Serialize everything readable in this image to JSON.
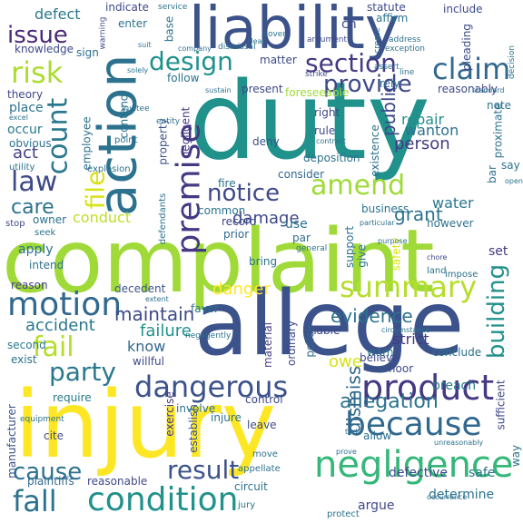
{
  "words": {
    "duty": "duty",
    "complaint": "complaint",
    "allege": "allege",
    "injury": "injury",
    "liability": "liability",
    "action": "action",
    "negligence": "negligence",
    "because": "because",
    "condition": "condition",
    "product": "product",
    "dangerous": "dangerous",
    "premise": "premise",
    "motion": "motion",
    "summary": "summary",
    "amend": "amend",
    "notice": "notice",
    "risk": "risk",
    "count": "count",
    "law": "law",
    "claim": "claim",
    "fail": "fail",
    "party": "party",
    "result": "result",
    "fall": "fall",
    "cause": "cause",
    "design": "design",
    "section": "section",
    "provide": "provide",
    "issue": "issue",
    "file": "file",
    "building": "building",
    "allegation": "allegation",
    "evidence": "evidence",
    "damage": "damage",
    "grant": "grant",
    "public": "public",
    "dismiss": "dismiss",
    "maintain": "maintain",
    "failure": "failure",
    "accident": "accident",
    "danger": "danger",
    "care": "care",
    "conduct": "conduct",
    "defect": "defect",
    "act": "act",
    "repair": "repair",
    "person": "person",
    "wanton": "wanton",
    "water": "water",
    "know": "know",
    "owe": "owe",
    "breach": "breach",
    "strict": "strict",
    "defective": "defective",
    "safe": "safe",
    "determine": "determine",
    "argue": "argue",
    "reasonable": "reasonable",
    "circuit": "circuit",
    "plaintiffs": "plaintiffs",
    "manufacturer": "manufacturer",
    "require": "require",
    "exercise": "exercise",
    "establish": "establish",
    "involve": "involve",
    "control": "control",
    "willful": "willful",
    "decedent": "decedent",
    "apply": "apply",
    "reason": "reason",
    "record": "record",
    "common": "common",
    "prior": "prior",
    "bring": "bring",
    "policy": "policy",
    "material": "material",
    "ordinary": "ordinary",
    "support": "support",
    "favor": "favor",
    "liable": "liable",
    "consider": "consider",
    "deny": "deny",
    "rule": "rule",
    "right": "right",
    "present": "present",
    "matter": "matter",
    "follow": "follow",
    "negligent": "negligent",
    "property": "property",
    "place": "place",
    "occur": "occur",
    "theory": "theory",
    "obvious": "obvious",
    "owner": "owner",
    "intend": "intend",
    "exist": "exist",
    "second": "second",
    "cite": "cite",
    "injure": "injure",
    "leave": "leave",
    "use": "use",
    "par": "par",
    "set": "set",
    "say": "say",
    "bar": "bar",
    "give": "give",
    "safety": "safety",
    "however": "however",
    "conclude": "conclude",
    "warn": "warn",
    "floor": "floor",
    "allow": "allow",
    "believe": "believe",
    "way": "way",
    "reasonably": "reasonably",
    "foreseeable": "foreseeable",
    "pleading": "pleading",
    "rely": "rely",
    "statute": "statute",
    "affirm": "affirm",
    "include": "include",
    "indicate": "indicate",
    "enter": "enter",
    "base": "base",
    "ch": "ch",
    "knowledge": "knowledge",
    "sign": "sign",
    "fire": "fire",
    "deposition": "deposition",
    "existence": "existence",
    "business": "business",
    "note": "note",
    "sufficient": "sufficient",
    "proximate": "proximate",
    "contend": "contend",
    "employee": "employee",
    "explosion": "explosion",
    "defendants": "defendants",
    "stop": "stop",
    "appellate": "appellate",
    "move": "move",
    "impose": "impose",
    "land": "land",
    "protect": "protect",
    "jury": "jury",
    "utility": "utility",
    "point": "point",
    "seek": "seek",
    "general": "general",
    "address": "address",
    "create": "create",
    "argument": "argument",
    "cover": "cover",
    "dismissal": "dismissal",
    "exception": "exception",
    "warning": "warning",
    "service": "service",
    "decision": "decision",
    "line": "line",
    "assert": "assert",
    "strike": "strike",
    "entity": "entity",
    "invitee": "invitee",
    "negligently": "negligently",
    "equipment": "equipment",
    "circumstance": "circumstance",
    "chore": "chore",
    "particular": "particular",
    "unreasonably": "unreasonably",
    "prove": "prove",
    "tort": "tort",
    "suit": "suit",
    "company": "company",
    "solely": "solely",
    "standard": "standard",
    "clear": "clear",
    "sustain": "sustain",
    "contract": "contract",
    "purpose": "purpose",
    "occurrence": "occurrence",
    "extent": "extent",
    "excel": "excel",
    "open": "open"
  }
}
